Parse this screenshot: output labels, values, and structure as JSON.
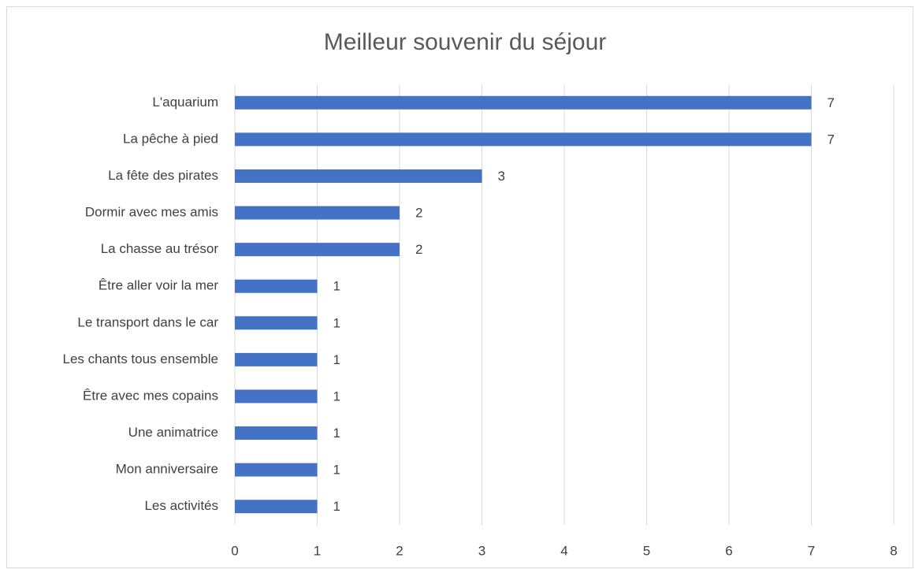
{
  "chart_data": {
    "type": "bar",
    "orientation": "horizontal",
    "title": "Meilleur souvenir du séjour",
    "categories": [
      "L'aquarium",
      "La pêche à pied",
      "La fête des pirates",
      "Dormir avec mes amis",
      "La chasse au trésor",
      "Être aller voir la mer",
      "Le transport dans le car",
      "Les chants tous ensemble",
      "Être avec mes copains",
      "Une animatrice",
      "Mon anniversaire",
      "Les activités"
    ],
    "values": [
      7,
      7,
      3,
      2,
      2,
      1,
      1,
      1,
      1,
      1,
      1,
      1
    ],
    "color": "#4472c4",
    "xlim": [
      0,
      8
    ],
    "xticks": [
      0,
      1,
      2,
      3,
      4,
      5,
      6,
      7,
      8
    ],
    "grid": true
  }
}
